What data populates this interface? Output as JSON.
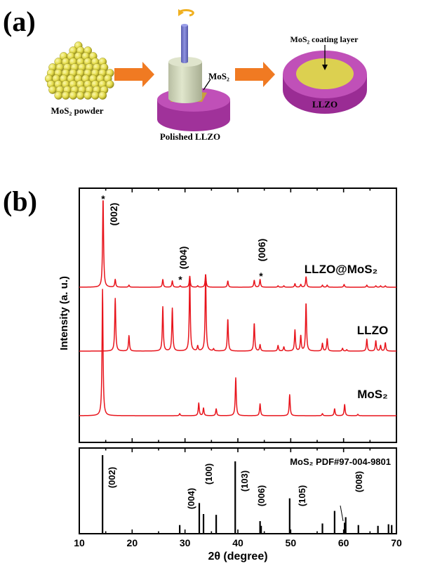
{
  "panel_a": {
    "panel_label": "(a)",
    "powder_label": "MoS₂ powder",
    "mos2_label": "MoS₂",
    "polished_label": "Polished LLZO",
    "coating_label": "MoS₂ coating layer",
    "llzo_label": "LLZO",
    "colors": {
      "arrow": "#f07a22",
      "mos2": "#e6e05a",
      "llzo": "#b03aa8",
      "cylinder": "#d2d8bc",
      "rod": "#7b7fd0",
      "rotate": "#f0b020"
    }
  },
  "panel_b": {
    "panel_label": "(b)"
  },
  "chart_data": [
    {
      "type": "line",
      "title": "",
      "xlabel": "2θ (degree)",
      "ylabel": "Intensity (a. u.)",
      "xlim": [
        10,
        70
      ],
      "ylim": [
        0,
        362
      ],
      "color": "#e8141c",
      "series": [
        {
          "name": "LLZO@MoS₂",
          "offset": 221,
          "peaks": [
            [
              14.5,
              127
            ],
            [
              16.8,
              11
            ],
            [
              19.4,
              3
            ],
            [
              25.8,
              11
            ],
            [
              27.6,
              9
            ],
            [
              29.1,
              2
            ],
            [
              30.9,
              16
            ],
            [
              32.4,
              2
            ],
            [
              33.9,
              18
            ],
            [
              38.1,
              9
            ],
            [
              43.1,
              10
            ],
            [
              44.2,
              11
            ],
            [
              47.6,
              2
            ],
            [
              48.7,
              2
            ],
            [
              50.8,
              5
            ],
            [
              51.9,
              4
            ],
            [
              52.9,
              15
            ],
            [
              56.0,
              3
            ],
            [
              56.9,
              3
            ],
            [
              60.1,
              4
            ],
            [
              64.4,
              3
            ],
            [
              66.1,
              2
            ],
            [
              67.0,
              2
            ],
            [
              67.9,
              2
            ]
          ]
        },
        {
          "name": "LLZO",
          "offset": 130,
          "peaks": [
            [
              16.8,
              75
            ],
            [
              19.4,
              22
            ],
            [
              25.8,
              63
            ],
            [
              27.6,
              61
            ],
            [
              30.9,
              108
            ],
            [
              32.4,
              7
            ],
            [
              33.9,
              112
            ],
            [
              35.4,
              3
            ],
            [
              38.1,
              46
            ],
            [
              43.1,
              40
            ],
            [
              44.2,
              9
            ],
            [
              47.6,
              8
            ],
            [
              48.7,
              6
            ],
            [
              50.8,
              30
            ],
            [
              51.9,
              22
            ],
            [
              52.9,
              69
            ],
            [
              56.0,
              11
            ],
            [
              56.9,
              18
            ],
            [
              59.8,
              4
            ],
            [
              60.6,
              2
            ],
            [
              64.4,
              17
            ],
            [
              66.1,
              15
            ],
            [
              67.0,
              8
            ],
            [
              67.9,
              12
            ]
          ]
        },
        {
          "name": "MoS₂",
          "offset": 38,
          "peaks": [
            [
              14.4,
              180
            ],
            [
              29.0,
              3
            ],
            [
              32.6,
              18
            ],
            [
              33.5,
              11
            ],
            [
              35.9,
              10
            ],
            [
              39.6,
              54
            ],
            [
              44.2,
              17
            ],
            [
              49.8,
              30
            ],
            [
              56.0,
              3
            ],
            [
              58.3,
              10
            ],
            [
              60.2,
              16
            ],
            [
              62.7,
              2
            ]
          ]
        }
      ],
      "annotations": {
        "star": "*",
        "hkl_002": "(002)",
        "hkl_004": "(004)",
        "hkl_006": "(006)"
      }
    },
    {
      "type": "bar",
      "title": "MoS₂  PDF#97-004-9801",
      "xlabel": "2θ (degree)",
      "ylabel": "",
      "xlim": [
        10,
        70
      ],
      "ylim": [
        0,
        109
      ],
      "xticks": [
        10,
        20,
        30,
        40,
        50,
        60,
        70
      ],
      "color": "#000000",
      "x": [
        14.4,
        29.0,
        32.7,
        33.5,
        35.9,
        39.5,
        44.2,
        44.4,
        49.8,
        56.0,
        58.3,
        60.2,
        60.4,
        62.8,
        66.5,
        68.5,
        69.1
      ],
      "values": [
        100,
        11,
        39,
        25,
        24,
        92,
        16,
        10,
        45,
        13,
        29,
        14,
        21,
        11,
        10,
        12,
        11
      ],
      "annotations": [
        "(002)",
        "(004)",
        "(100)",
        "(103)",
        "(006)",
        "(105)",
        "(008)"
      ]
    }
  ]
}
